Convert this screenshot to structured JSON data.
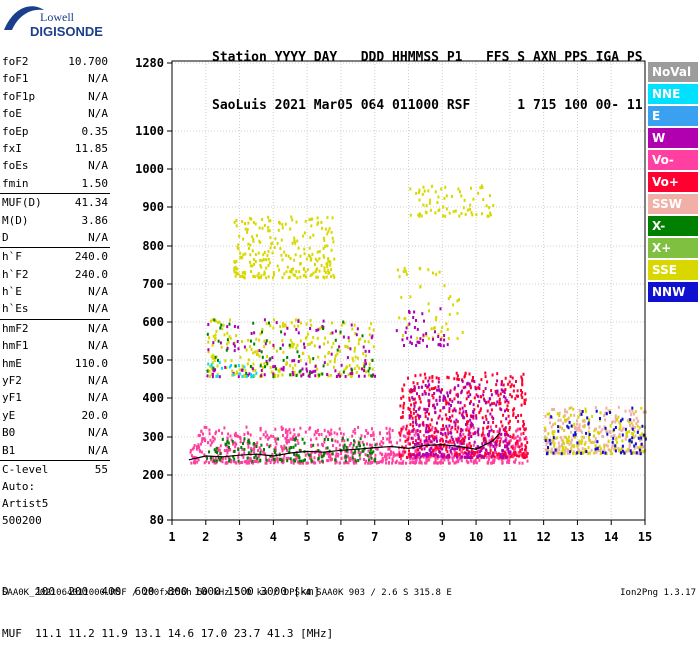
{
  "logo": {
    "line1": "Lowell",
    "line2": "DIGISONDE"
  },
  "header": {
    "labels": [
      "Station",
      "YYYY",
      "DAY",
      "DDD",
      "HHMMSS",
      "P1",
      "FFS",
      "S",
      "AXN",
      "PPS",
      "IGA",
      "PS"
    ],
    "values": [
      "SaoLuis",
      "2021",
      "Mar05",
      "064",
      "011000",
      "RSF",
      "1",
      "715",
      "100",
      "00-",
      "11"
    ]
  },
  "params": [
    {
      "name": "foF2",
      "value": "10.700"
    },
    {
      "name": "foF1",
      "value": "N/A"
    },
    {
      "name": "foF1p",
      "value": "N/A"
    },
    {
      "name": "foE",
      "value": "N/A"
    },
    {
      "name": "foEp",
      "value": "0.35"
    },
    {
      "name": "fxI",
      "value": "11.85"
    },
    {
      "name": "foEs",
      "value": "N/A"
    },
    {
      "name": "fmin",
      "value": "1.50"
    },
    {
      "name": "MUF(D)",
      "value": "41.34"
    },
    {
      "name": "M(D)",
      "value": "3.86"
    },
    {
      "name": "D",
      "value": "N/A"
    },
    {
      "name": "h`F",
      "value": "240.0"
    },
    {
      "name": "h`F2",
      "value": "240.0"
    },
    {
      "name": "h`E",
      "value": "N/A"
    },
    {
      "name": "h`Es",
      "value": "N/A"
    },
    {
      "name": "hmF2",
      "value": "N/A"
    },
    {
      "name": "hmF1",
      "value": "N/A"
    },
    {
      "name": "hmE",
      "value": "110.0"
    },
    {
      "name": "yF2",
      "value": "N/A"
    },
    {
      "name": "yF1",
      "value": "N/A"
    },
    {
      "name": "yE",
      "value": "20.0"
    },
    {
      "name": "B0",
      "value": "N/A"
    },
    {
      "name": "B1",
      "value": "N/A"
    },
    {
      "name": "C-level",
      "value": "55"
    }
  ],
  "footer_info": {
    "auto": "Auto:",
    "artist": "Artist5",
    "code": "500200"
  },
  "legend": [
    {
      "label": "NoVal",
      "color": "#9c9c9c"
    },
    {
      "label": "NNE",
      "color": "#00e0ff"
    },
    {
      "label": "E",
      "color": "#3aa0f0"
    },
    {
      "label": "W",
      "color": "#b000b0"
    },
    {
      "label": "Vo-",
      "color": "#ff40a0"
    },
    {
      "label": "Vo+",
      "color": "#ff0030"
    },
    {
      "label": "SSW",
      "color": "#f0b0a8"
    },
    {
      "label": "X-",
      "color": "#008000"
    },
    {
      "label": "X+",
      "color": "#80c040"
    },
    {
      "label": "SSE",
      "color": "#d8d800"
    },
    {
      "label": "NNW",
      "color": "#1010d0"
    }
  ],
  "chart_data": {
    "type": "scatter",
    "xlabel": "",
    "ylabel": "",
    "xlim": [
      1,
      15
    ],
    "ylim": [
      80,
      1280
    ],
    "x_ticks": [
      "1",
      "2",
      "3",
      "4",
      "5",
      "6",
      "7",
      "8",
      "9",
      "10",
      "11",
      "12",
      "13",
      "14",
      "15"
    ],
    "y_ticks": [
      "80",
      "200",
      "300",
      "400",
      "500",
      "600",
      "700",
      "800",
      "900",
      "1000",
      "1100",
      "1280"
    ],
    "trace": {
      "x": [
        1.5,
        2.0,
        2.5,
        3.0,
        3.5,
        4.0,
        4.5,
        5.0,
        5.5,
        6.0,
        6.5,
        7.0,
        7.5,
        8.0,
        8.5,
        9.0,
        9.5,
        10.0,
        10.5,
        10.7
      ],
      "y": [
        240,
        250,
        248,
        252,
        255,
        250,
        258,
        262,
        260,
        265,
        268,
        272,
        275,
        270,
        278,
        280,
        275,
        268,
        290,
        310
      ]
    },
    "clusters": [
      {
        "x": [
          1.5,
          11.5
        ],
        "y": [
          235,
          330
        ],
        "color": "#ff40a0",
        "density": 900
      },
      {
        "x": [
          7.7,
          11.5
        ],
        "y": [
          250,
          470
        ],
        "color": "#ff0030",
        "density": 500
      },
      {
        "x": [
          8.0,
          11.0
        ],
        "y": [
          250,
          450
        ],
        "color": "#b000b0",
        "density": 300
      },
      {
        "x": [
          2.0,
          7.0
        ],
        "y": [
          240,
          300
        ],
        "color": "#008000",
        "density": 150
      },
      {
        "x": [
          12.0,
          15.0
        ],
        "y": [
          260,
          380
        ],
        "color": "#f0b0a8",
        "density": 250
      },
      {
        "x": [
          12.0,
          15.0
        ],
        "y": [
          260,
          380
        ],
        "color": "#d8d800",
        "density": 150
      },
      {
        "x": [
          12.0,
          15.0
        ],
        "y": [
          260,
          380
        ],
        "color": "#1010d0",
        "density": 80
      },
      {
        "x": [
          2.0,
          7.0
        ],
        "y": [
          460,
          610
        ],
        "color": "#d8d800",
        "density": 250
      },
      {
        "x": [
          2.0,
          7.0
        ],
        "y": [
          460,
          610
        ],
        "color": "#b000b0",
        "density": 120
      },
      {
        "x": [
          2.0,
          7.0
        ],
        "y": [
          460,
          610
        ],
        "color": "#008000",
        "density": 60
      },
      {
        "x": [
          2.8,
          5.8
        ],
        "y": [
          720,
          880
        ],
        "color": "#d8d800",
        "density": 250
      },
      {
        "x": [
          8.0,
          10.5
        ],
        "y": [
          880,
          960
        ],
        "color": "#d8d800",
        "density": 70
      },
      {
        "x": [
          7.6,
          9.6
        ],
        "y": [
          560,
          750
        ],
        "color": "#d8d800",
        "density": 50
      },
      {
        "x": [
          7.6,
          9.2
        ],
        "y": [
          540,
          640
        ],
        "color": "#b000b0",
        "density": 40
      },
      {
        "x": [
          2.0,
          3.5
        ],
        "y": [
          460,
          500
        ],
        "color": "#00e0ff",
        "density": 20
      }
    ]
  },
  "bottom_table": {
    "d_label": "D",
    "d_values": [
      "100",
      "200",
      "400",
      "600",
      "800",
      "1000",
      "1500",
      "3000"
    ],
    "d_unit": "[km]",
    "muf_label": "MUF",
    "muf_values": [
      "11.1",
      "11.2",
      "11.9",
      "13.1",
      "14.6",
      "17.0",
      "23.7",
      "41.3"
    ],
    "muf_unit": "[MHz]"
  },
  "file_line": "SAA0K_2021064011000.RSF / 280fx256h 50 kHz 5.0 km / DPS-4 SAA0K 903 / 2.6 S 315.8 E",
  "version": "Ion2Png 1.3.17"
}
